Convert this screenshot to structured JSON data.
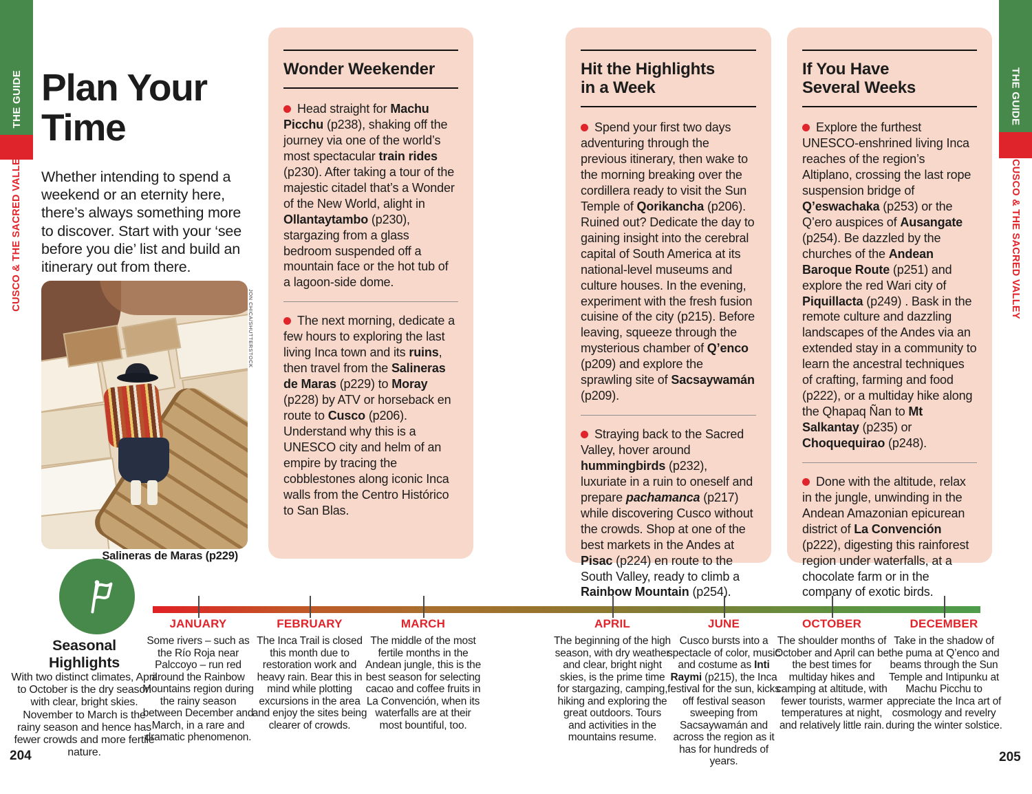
{
  "colors": {
    "accent_red": "#e0242b",
    "brand_green": "#47894a",
    "panel_pink": "#f7d8ca",
    "timeline_green": "#4d9c4c"
  },
  "sidebar": {
    "guide_label": "THE GUIDE",
    "region_label": "CUSCO & THE SACRED VALLEY"
  },
  "page": {
    "left_number": "204",
    "right_number": "205"
  },
  "header": {
    "title_lines": [
      "Plan Your",
      "Time"
    ],
    "intro": "Whether intending to spend a weekend or an eternity here, there’s always something more to discover. Start with your ‘see before you die’ list and build an itinerary out from there."
  },
  "photo": {
    "caption": "Salineras de Maras (p229)",
    "credit": "JON CHICA/SHUTTERSTOCK"
  },
  "itineraries": [
    {
      "heading_lines": [
        "Wonder Weekender"
      ],
      "paragraphs": [
        [
          {
            "t": "Head straight for "
          },
          {
            "t": "Machu Picchu",
            "b": 1
          },
          {
            "t": " (p238), shaking off the journey via one of the world’s most spectacular "
          },
          {
            "t": "train rides",
            "b": 1
          },
          {
            "t": " (p230). After taking a tour of the majestic citadel that’s a Wonder of the New World, alight in "
          },
          {
            "t": "Ollantaytambo",
            "b": 1
          },
          {
            "t": " (p230), stargazing from a glass bedroom suspended off a mountain face or the hot tub of a lagoon-side dome."
          }
        ],
        [
          {
            "t": "The next morning, dedicate a few hours to exploring the last living Inca town and its "
          },
          {
            "t": "ruins",
            "b": 1
          },
          {
            "t": ", then travel from the "
          },
          {
            "t": "Salineras de Maras",
            "b": 1
          },
          {
            "t": " (p229) to "
          },
          {
            "t": "Moray",
            "b": 1
          },
          {
            "t": " (p228) by ATV or horseback en route to "
          },
          {
            "t": "Cusco",
            "b": 1
          },
          {
            "t": " (p206). Understand why this is a UNESCO city and helm of an empire by tracing the cobblestones along iconic Inca walls from the Centro Histórico to San Blas."
          }
        ]
      ]
    },
    {
      "heading_lines": [
        "Hit the Highlights",
        "in a Week"
      ],
      "paragraphs": [
        [
          {
            "t": "Spend your first two days adventuring through the previous itinerary, then wake to the morning breaking over the cordillera ready to visit the Sun Temple of "
          },
          {
            "t": "Qorikancha",
            "b": 1
          },
          {
            "t": " (p206). Ruined out? Dedicate the day to gaining insight into the cerebral capital of South America at its national-level museums and culture houses. In the evening, experiment with the fresh fusion cuisine of the city (p215). Before leaving, squeeze through the mysterious chamber of "
          },
          {
            "t": "Q’enco",
            "b": 1
          },
          {
            "t": " (p209) and explore the sprawling site of "
          },
          {
            "t": "Sacsaywamán",
            "b": 1
          },
          {
            "t": " (p209)."
          }
        ],
        [
          {
            "t": "Straying back to the Sacred Valley, hover around "
          },
          {
            "t": "hummingbirds",
            "b": 1
          },
          {
            "t": " (p232), luxuriate in a ruin to oneself and prepare "
          },
          {
            "t": "pachamanca",
            "b": 1,
            "i": 1
          },
          {
            "t": " (p217) while discovering Cusco without the crowds. Shop at one of the best markets in the Andes at "
          },
          {
            "t": "Pisac",
            "b": 1
          },
          {
            "t": " (p224) en route to the South Valley, ready to climb a "
          },
          {
            "t": "Rainbow Mountain",
            "b": 1
          },
          {
            "t": " (p254)."
          }
        ]
      ]
    },
    {
      "heading_lines": [
        "If You Have",
        "Several Weeks"
      ],
      "paragraphs": [
        [
          {
            "t": "Explore the furthest UNESCO-enshrined living Inca reaches of the region’s Altiplano, crossing the last rope suspension bridge of "
          },
          {
            "t": "Q’eswachaka",
            "b": 1
          },
          {
            "t": " (p253) or the Q’ero auspices of "
          },
          {
            "t": "Ausangate",
            "b": 1
          },
          {
            "t": " (p254). Be dazzled by the churches of the "
          },
          {
            "t": "Andean Baroque Route",
            "b": 1
          },
          {
            "t": " (p251) and explore the red Wari city of "
          },
          {
            "t": "Piquillacta",
            "b": 1
          },
          {
            "t": " (p249) . Bask in the remote culture and dazzling landscapes of the Andes via an extended stay in a community to learn the ancestral techniques of crafting, farming and food (p222), or a multiday hike along the Qhapaq Ñan to "
          },
          {
            "t": "Mt Salkantay",
            "b": 1
          },
          {
            "t": " (p235) or "
          },
          {
            "t": "Choquequirao",
            "b": 1
          },
          {
            "t": " (p248)."
          }
        ],
        [
          {
            "t": "Done with the altitude, relax in the jungle, unwinding in the Andean Amazonian epicurean district of "
          },
          {
            "t": "La Convención",
            "b": 1
          },
          {
            "t": " (p222), digesting this rainforest region under waterfalls, at a chocolate farm or in the company of exotic birds."
          }
        ]
      ]
    }
  ],
  "seasonal": {
    "title_lines": [
      "Seasonal",
      "Highlights"
    ],
    "body": "With two distinct climates, April to October is the dry season with clear, bright skies. November to March is the rainy season and hence has fewer crowds and more fertile nature."
  },
  "timeline": {
    "months": [
      {
        "label": "JANUARY",
        "desc": [
          {
            "t": "Some rivers – such as the Río Roja near Palccoyo – run red around the Rainbow Mountains region during the rainy season between December and March, in a rare and dramatic phenomenon."
          }
        ]
      },
      {
        "label": "FEBRUARY",
        "desc": [
          {
            "t": "The Inca Trail is closed this month due to restoration work and heavy rain. Bear this in mind while plotting excursions in the area and enjoy the sites being clearer of crowds."
          }
        ]
      },
      {
        "label": "MARCH",
        "desc": [
          {
            "t": "The middle of the most fertile months in the Andean jungle, this is the best season for selecting cacao and coffee fruits in La Convención, when its waterfalls are at their most bountiful, too."
          }
        ]
      },
      {
        "label": "APRIL",
        "desc": [
          {
            "t": "The beginning of the high season, with dry weather and clear, bright night skies, is the prime time for stargazing, camping, hiking and exploring the great outdoors. Tours and activities in the mountains resume."
          }
        ]
      },
      {
        "label": "JUNE",
        "desc": [
          {
            "t": "Cusco bursts into a spectacle of color, music and costume as "
          },
          {
            "t": "Inti Raymi",
            "b": 1
          },
          {
            "t": " (p215), the Inca festival for the sun, kicks off festival season sweeping from Sacsaywamán and across the region as it has for hundreds of years."
          }
        ]
      },
      {
        "label": "OCTOBER",
        "desc": [
          {
            "t": "The shoulder months of October and April can be the best times for multiday hikes and camping at altitude, with fewer tourists, warmer temperatures at night, and relatively little rain."
          }
        ]
      },
      {
        "label": "DECEMBER",
        "desc": [
          {
            "t": "Take in the shadow of the puma at Q’enco and beams through the Sun Temple and Intipunku at Machu Picchu to appreciate the Inca art of cosmology and revelry during the winter solstice."
          }
        ]
      }
    ]
  }
}
